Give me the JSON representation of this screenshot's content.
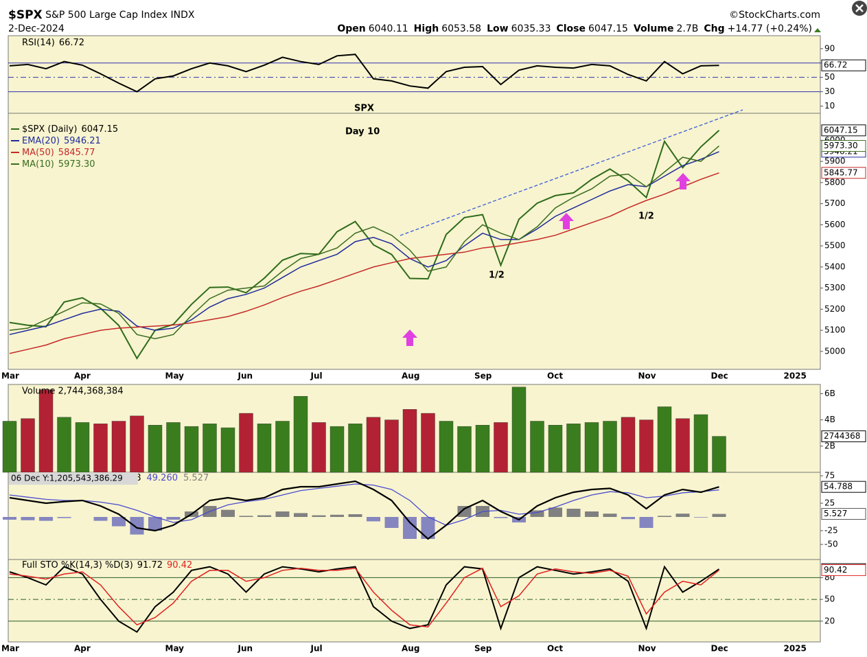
{
  "header": {
    "symbol": "$SPX",
    "name": "S&P 500 Large Cap Index",
    "exchange": "INDX",
    "date": "2-Dec-2024",
    "credit": "©StockCharts.com",
    "quote": [
      {
        "label": "Open",
        "value": "6040.11"
      },
      {
        "label": "High",
        "value": "6053.58"
      },
      {
        "label": "Low",
        "value": "6035.33"
      },
      {
        "label": "Close",
        "value": "6047.15"
      },
      {
        "label": "Volume",
        "value": "2.7B"
      },
      {
        "label": "Chg",
        "value": "+14.77 (+0.24%)"
      }
    ]
  },
  "chart_data": [
    {
      "type": "line",
      "ylim": [
        0,
        108
      ],
      "yticks": [
        10,
        30,
        50,
        70,
        90
      ],
      "levels": [
        70,
        50,
        30
      ],
      "series": [
        {
          "name": "RSI(14)",
          "color": "#000000",
          "values": [
            66,
            68,
            62,
            72,
            67,
            55,
            42,
            30,
            48,
            52,
            62,
            70,
            66,
            58,
            67,
            78,
            72,
            68,
            80,
            82,
            48,
            45,
            38,
            35,
            58,
            64,
            65,
            40,
            60,
            66,
            64,
            63,
            68,
            66,
            54,
            45,
            72,
            55,
            66,
            66.72
          ]
        }
      ]
    },
    {
      "type": "line",
      "ylim": [
        4915,
        6128
      ],
      "yticks": [
        5000,
        5100,
        5200,
        5300,
        5400,
        5500,
        5600,
        5700,
        5800,
        5900,
        6000
      ],
      "categories": [
        "Mar",
        null,
        null,
        null,
        "Apr",
        null,
        null,
        null,
        null,
        "May",
        null,
        null,
        null,
        "Jun",
        null,
        null,
        null,
        "Jul",
        null,
        null,
        null,
        null,
        "Aug",
        null,
        null,
        null,
        "Sep",
        null,
        null,
        null,
        "Oct",
        null,
        null,
        null,
        null,
        "Nov",
        null,
        null,
        null,
        "Dec",
        null,
        null,
        null,
        "2025",
        null
      ],
      "series": [
        {
          "name": "$SPX (Daily)",
          "color": "#2e6b1a",
          "values": [
            5137,
            5124,
            5117,
            5234,
            5254,
            5204,
            5123,
            4967,
            5100,
            5128,
            5223,
            5303,
            5305,
            5278,
            5347,
            5432,
            5464,
            5460,
            5567,
            5615,
            5505,
            5459,
            5346,
            5344,
            5554,
            5634,
            5648,
            5408,
            5626,
            5702,
            5738,
            5751,
            5815,
            5864,
            5808,
            5729,
            5995,
            5870,
            5969,
            6047.15,
            null,
            null,
            null,
            null,
            null
          ]
        },
        {
          "name": "EMA(20)",
          "color": "#1f2a9c",
          "values": [
            5080,
            5100,
            5120,
            5150,
            5180,
            5200,
            5190,
            5120,
            5100,
            5110,
            5150,
            5210,
            5250,
            5270,
            5300,
            5350,
            5400,
            5430,
            5460,
            5520,
            5540,
            5510,
            5440,
            5400,
            5430,
            5500,
            5560,
            5530,
            5530,
            5580,
            5640,
            5680,
            5720,
            5760,
            5790,
            5780,
            5830,
            5880,
            5910,
            5946.21,
            null,
            null,
            null,
            null,
            null
          ]
        },
        {
          "name": "MA(50)",
          "color": "#c62828",
          "values": [
            4990,
            5010,
            5030,
            5060,
            5080,
            5100,
            5110,
            5115,
            5120,
            5125,
            5135,
            5150,
            5165,
            5190,
            5220,
            5255,
            5285,
            5310,
            5340,
            5370,
            5400,
            5420,
            5440,
            5450,
            5460,
            5470,
            5490,
            5500,
            5515,
            5530,
            5550,
            5580,
            5610,
            5640,
            5680,
            5715,
            5745,
            5780,
            5815,
            5845.77,
            null,
            null,
            null,
            null,
            null
          ]
        },
        {
          "name": "MA(10)",
          "color": "#3a6b1e",
          "last_label": "5973.30",
          "values": [
            5100,
            5110,
            5150,
            5190,
            5230,
            5225,
            5180,
            5080,
            5060,
            5080,
            5170,
            5250,
            5290,
            5300,
            5310,
            5380,
            5440,
            5460,
            5490,
            5560,
            5590,
            5550,
            5480,
            5380,
            5400,
            5520,
            5600,
            5560,
            5530,
            5590,
            5680,
            5730,
            5770,
            5830,
            5840,
            5780,
            5850,
            5920,
            5900,
            5973.3,
            null,
            null,
            null,
            null,
            null
          ]
        }
      ],
      "annotations": [
        {
          "text": "SPX",
          "color": "#2b3fe0"
        },
        {
          "text": "Day 10",
          "color": "#e040e0"
        },
        {
          "text": "1/2",
          "color": "#4a6b2a"
        },
        {
          "text": "1/2",
          "color": "#4a6b2a"
        }
      ]
    },
    {
      "type": "bar",
      "title": "Volume 2,744,368,384",
      "box_label": "2744368",
      "up_color": "#3a7d1e",
      "down_color": "#b22234",
      "ylim": [
        0,
        6700000000
      ],
      "yticks": [
        {
          "value": 2000000000,
          "label": "2B"
        },
        {
          "value": 4000000000,
          "label": "4B"
        },
        {
          "value": 6000000000,
          "label": "6B"
        }
      ],
      "values": [
        3900000000,
        4100000000,
        6300000000,
        4200000000,
        3800000000,
        3700000000,
        3900000000,
        4300000000,
        3600000000,
        3800000000,
        3500000000,
        3700000000,
        3400000000,
        4500000000,
        3700000000,
        3900000000,
        5800000000,
        3800000000,
        3500000000,
        3700000000,
        4200000000,
        4000000000,
        4800000000,
        4500000000,
        3900000000,
        3500000000,
        3600000000,
        3800000000,
        6500000000,
        3900000000,
        3600000000,
        3700000000,
        3800000000,
        3900000000,
        4200000000,
        4000000000,
        5000000000,
        4100000000,
        4400000000,
        2744368384
      ]
    },
    {
      "type": "macd",
      "tooltip": "06 Dec Y:1,205,543,386.29",
      "ylim": [
        -77.5,
        81.25
      ],
      "yticks": [
        -50,
        -25,
        25,
        75
      ],
      "series": [
        {
          "color": "#000000",
          "values": [
            35,
            30,
            25,
            28,
            30,
            20,
            5,
            -20,
            -25,
            -15,
            5,
            30,
            35,
            30,
            35,
            50,
            55,
            55,
            60,
            65,
            50,
            30,
            -10,
            -40,
            -15,
            15,
            30,
            10,
            -5,
            20,
            35,
            45,
            50,
            52,
            40,
            15,
            40,
            50,
            45,
            54.788
          ]
        },
        {
          "color": "#4a4ad0",
          "last_label": "49.260",
          "values": [
            40,
            36,
            32,
            30,
            30,
            27,
            22,
            12,
            0,
            -10,
            -5,
            10,
            22,
            28,
            32,
            40,
            48,
            52,
            56,
            60,
            58,
            50,
            30,
            0,
            -15,
            -5,
            10,
            12,
            5,
            8,
            18,
            30,
            40,
            46,
            44,
            35,
            38,
            44,
            46,
            49.26
          ]
        },
        {
          "color": "#808080",
          "neg_color": "#8585c0",
          "values": [
            -5,
            -6,
            -7,
            -2,
            0,
            -7,
            -17,
            -32,
            -25,
            -5,
            10,
            20,
            13,
            2,
            3,
            10,
            7,
            3,
            4,
            5,
            -8,
            -20,
            -40,
            -40,
            0,
            20,
            20,
            -2,
            -10,
            12,
            17,
            15,
            10,
            6,
            -4,
            -20,
            2,
            6,
            -1,
            5.527
          ]
        }
      ]
    },
    {
      "type": "line",
      "title": "Full STO %K(14,3) %D(3)",
      "ylim": [
        -8.6,
        105
      ],
      "yticks": [
        20,
        50,
        80
      ],
      "levels": [
        80,
        50,
        20
      ],
      "categories": [
        "Mar",
        null,
        null,
        null,
        "Apr",
        null,
        null,
        null,
        null,
        "May",
        null,
        null,
        null,
        "Jun",
        null,
        null,
        null,
        "Jul",
        null,
        null,
        null,
        null,
        "Aug",
        null,
        null,
        null,
        "Sep",
        null,
        null,
        null,
        "Oct",
        null,
        null,
        null,
        null,
        "Nov",
        null,
        null,
        null,
        "Dec",
        null,
        null,
        null,
        "2025",
        null
      ],
      "series": [
        {
          "color": "#000000",
          "values": [
            88,
            80,
            70,
            95,
            85,
            50,
            20,
            5,
            40,
            60,
            90,
            95,
            85,
            60,
            85,
            95,
            92,
            88,
            92,
            95,
            40,
            20,
            10,
            15,
            70,
            95,
            92,
            10,
            80,
            95,
            90,
            85,
            88,
            92,
            75,
            10,
            95,
            60,
            75,
            91.72,
            null,
            null,
            null,
            null,
            null
          ]
        },
        {
          "color": "#e02020",
          "values": [
            85,
            82,
            78,
            85,
            88,
            70,
            40,
            15,
            25,
            45,
            75,
            90,
            90,
            75,
            80,
            90,
            93,
            90,
            90,
            93,
            60,
            35,
            15,
            12,
            45,
            80,
            93,
            40,
            55,
            85,
            92,
            88,
            86,
            90,
            82,
            30,
            60,
            75,
            70,
            90.42,
            null,
            null,
            null,
            null,
            null
          ]
        }
      ]
    }
  ]
}
